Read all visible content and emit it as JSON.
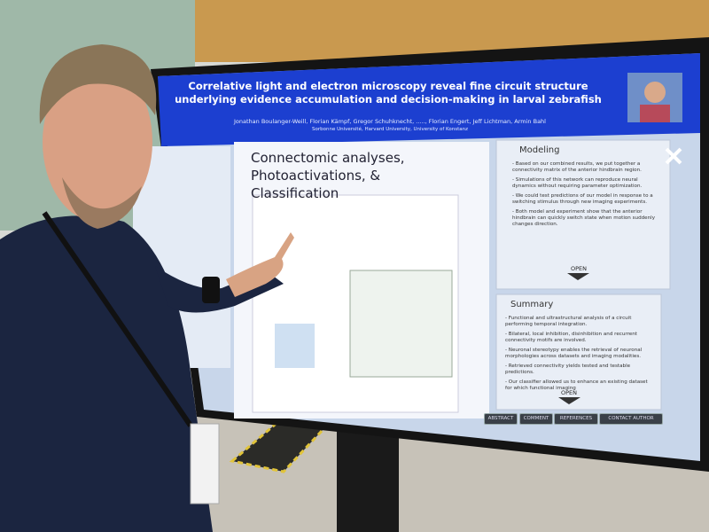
{
  "poster": {
    "title": "Correlative light and electron microscopy reveal fine circuit structure underlying evidence accumulation and decision-making in larval zebrafish",
    "authors": "Jonathan Boulanger-Weill, Florian Kämpf, Gregor Schuhknecht, ....., Florian Engert, Jeff Lichtman, Armin Bahl",
    "affiliations": "Sorbonne Université, Harvard University, University of Konstanz",
    "panel_title": "Connectomic analyses, Photoactivations, & Classification",
    "modeling": {
      "heading": "Modeling",
      "bullets": [
        "- Based on our combined results, we put together a connectivity matrix of the anterior hindbrain region.",
        "- Simulations of this network can reproduce neural dynamics without requiring parameter optimization.",
        "- We could test predictions of our model in response to a switching stimulus through new imaging experiments.",
        "- Both model and experiment show that the anterior hindbrain can quickly switch state when motion suddenly changes direction."
      ],
      "open": "OPEN"
    },
    "summary": {
      "heading": "Summary",
      "bullets": [
        "- Functional and ultrastructural analysis of a circuit performing temporal integration.",
        "- Bilateral, local inhibition, disinhibition and recurrent connectivity motifs are involved.",
        "- Neuronal stereotypy enables the retrieval of neuronal morphologies across datasets and imaging modalities.",
        "- Retrieved connectivity yields tested and testable predictions.",
        "- Our classifier allowed us to enhance an existing dataset for which functional imaging"
      ],
      "open": "OPEN"
    },
    "buttons": [
      "ABSTRACT",
      "COMMENT",
      "REFERENCES",
      "CONTACT AUTHOR"
    ]
  }
}
